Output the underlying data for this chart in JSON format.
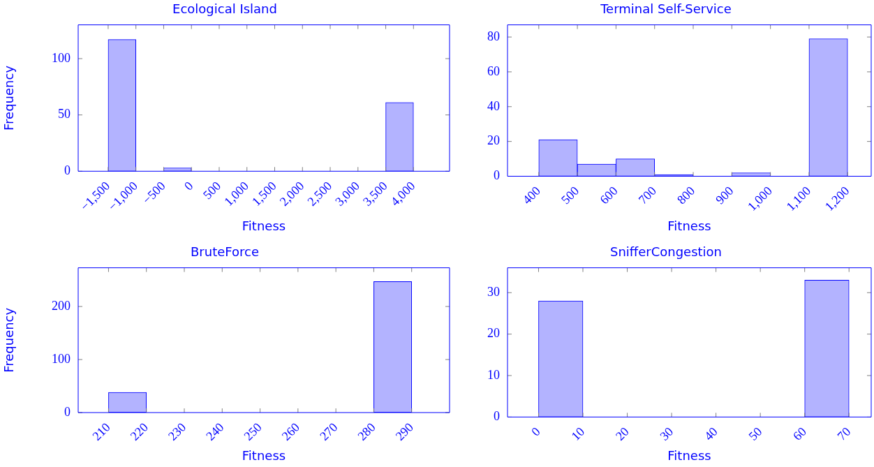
{
  "chart_data": [
    {
      "type": "histogram",
      "title": "Ecological Island",
      "xlabel": "Fitness",
      "ylabel": "Frequency",
      "color": "#b3b3ff",
      "bins": [
        -1500,
        -1000,
        -500,
        0,
        500,
        1000,
        1500,
        2000,
        2500,
        3000,
        3500,
        4000
      ],
      "values": [
        117,
        0,
        3,
        0,
        0,
        0,
        0,
        0,
        0,
        0,
        61
      ],
      "xlim": [
        -2040,
        4650
      ],
      "ylim": [
        0,
        130
      ],
      "xticks": [
        {
          "value": -1500,
          "label": "−1,500"
        },
        {
          "value": -1000,
          "label": "−1,000"
        },
        {
          "value": -500,
          "label": "−500"
        },
        0,
        500,
        {
          "value": 1000,
          "label": "1,000"
        },
        {
          "value": 1500,
          "label": "1,500"
        },
        {
          "value": 2000,
          "label": "2,000"
        },
        {
          "value": 2500,
          "label": "2,500"
        },
        {
          "value": 3000,
          "label": "3,000"
        },
        {
          "value": 3500,
          "label": "3,500"
        },
        {
          "value": 4000,
          "label": "4,000"
        }
      ],
      "yticks": [
        0,
        50,
        100
      ]
    },
    {
      "type": "histogram",
      "title": "Terminal Self-Service",
      "xlabel": "Fitness",
      "color": "#b3b3ff",
      "bins": [
        400,
        500,
        600,
        700,
        800,
        900,
        1000,
        1100,
        1200
      ],
      "values": [
        21,
        7,
        10,
        1,
        0,
        2,
        0,
        79
      ],
      "xlim": [
        319,
        1261
      ],
      "ylim": [
        0,
        87
      ],
      "xticks": [
        400,
        500,
        600,
        700,
        800,
        900,
        {
          "value": 1000,
          "label": "1,000"
        },
        {
          "value": 1100,
          "label": "1,100"
        },
        {
          "value": 1200,
          "label": "1,200"
        }
      ],
      "yticks": [
        0,
        20,
        40,
        60,
        80
      ]
    },
    {
      "type": "histogram",
      "title": "BruteForce",
      "xlabel": "Fitness",
      "ylabel": "Frequency",
      "color": "#b3b3ff",
      "bins": [
        210,
        220,
        230,
        240,
        250,
        260,
        270,
        280,
        290
      ],
      "values": [
        38,
        0,
        0,
        0,
        0,
        0,
        0,
        247
      ],
      "xlim": [
        202,
        300
      ],
      "ylim": [
        0,
        273
      ],
      "xticks": [
        210,
        220,
        230,
        240,
        250,
        260,
        270,
        280,
        290
      ],
      "yticks": [
        0,
        100,
        200
      ]
    },
    {
      "type": "histogram",
      "title": "SnifferCongestion",
      "xlabel": "Fitness",
      "color": "#b3b3ff",
      "bins": [
        0,
        10,
        20,
        30,
        40,
        50,
        60,
        70
      ],
      "values": [
        28,
        0,
        0,
        0,
        0,
        0,
        33
      ],
      "xlim": [
        -7,
        75
      ],
      "ylim": [
        0,
        36
      ],
      "xticks": [
        0,
        10,
        20,
        30,
        40,
        50,
        60,
        70
      ],
      "yticks": [
        0,
        10,
        20,
        30
      ]
    }
  ]
}
